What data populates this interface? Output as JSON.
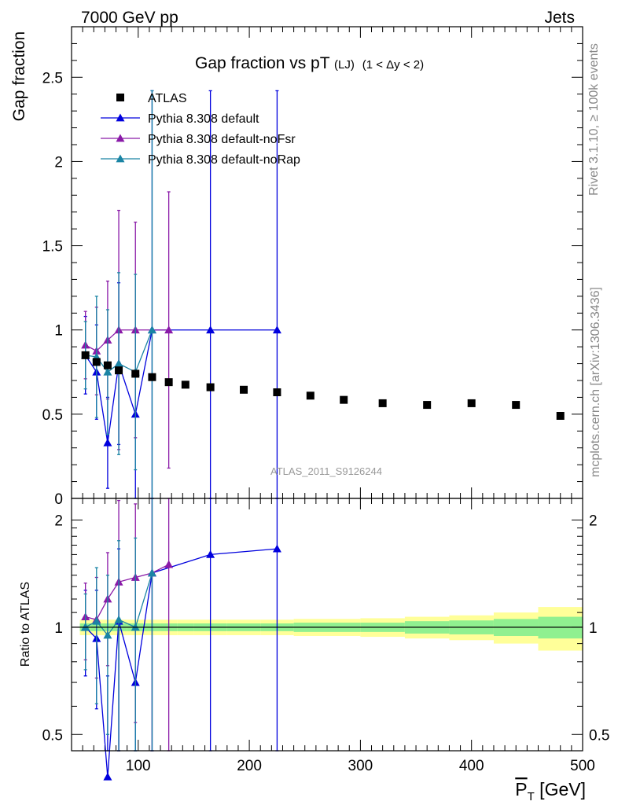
{
  "header": {
    "left": "7000 GeV pp",
    "right": "Jets"
  },
  "side_labels": {
    "rivet": "Rivet 3.1.10, ≥ 100k events",
    "mcplots": "mcplots.cern.ch [arXiv:1306.3436]"
  },
  "chart_data": [
    {
      "type": "scatter",
      "panel": "main",
      "title": "Gap fraction vs pT",
      "title_suffix": "(LJ)",
      "title_range": "(1 < Δy < 2)",
      "ylabel": "Gap fraction",
      "watermark": "ATLAS_2011_S9126244",
      "xlim": [
        40,
        500
      ],
      "ylim": [
        0,
        2.8
      ],
      "yticks": [
        0.5,
        1,
        1.5,
        2,
        2.5
      ],
      "ytick_labels": [
        "0.5",
        "1",
        "1.5",
        "2",
        "2.5"
      ],
      "y_bottom_label": "0",
      "legend_position": "top-left",
      "series": [
        {
          "name": "ATLAS",
          "color": "#000000",
          "marker": "square",
          "x": [
            52.5,
            62.5,
            72.5,
            82.5,
            97.5,
            112.5,
            127.5,
            142.5,
            165,
            195,
            225,
            255,
            285,
            320,
            360,
            400,
            440,
            480
          ],
          "y": [
            0.85,
            0.81,
            0.79,
            0.76,
            0.74,
            0.72,
            0.69,
            0.675,
            0.66,
            0.645,
            0.63,
            0.61,
            0.585,
            0.565,
            0.555,
            0.565,
            0.555,
            0.49
          ]
        },
        {
          "name": "Pythia 8.308 default",
          "color": "#0000dd",
          "marker": "triangle",
          "x": [
            52.5,
            62.5,
            72.5,
            82.5,
            97.5,
            112.5,
            165,
            225
          ],
          "y": [
            0.85,
            0.75,
            0.33,
            0.8,
            0.5,
            1.0,
            1.0,
            1.0
          ],
          "yerr": [
            0.23,
            0.28,
            0.27,
            0.48,
            0.5,
            1.42,
            1.42,
            1.42
          ]
        },
        {
          "name": "Pythia 8.308 default-noFsr",
          "color": "#8a1aa8",
          "marker": "triangle",
          "x": [
            52.5,
            62.5,
            72.5,
            82.5,
            97.5,
            127.5
          ],
          "y": [
            0.91,
            0.875,
            0.94,
            1.0,
            1.0,
            1.0
          ],
          "yerr": [
            0.2,
            0.26,
            0.35,
            0.71,
            0.64,
            0.82
          ]
        },
        {
          "name": "Pythia 8.308 default-noRap",
          "color": "#1a84a4",
          "marker": "triangle",
          "x": [
            52.5,
            62.5,
            72.5,
            82.5,
            97.5,
            112.5
          ],
          "y": [
            0.85,
            0.84,
            0.75,
            0.8,
            0.75,
            1.0
          ],
          "yerr": [
            0.2,
            0.36,
            0.37,
            0.54,
            0.58,
            1.42
          ]
        }
      ]
    },
    {
      "type": "line",
      "panel": "ratio",
      "ylabel": "Ratio to ATLAS",
      "xlabel": "P_T [GeV]",
      "xlabel_main": "P",
      "xlabel_sub": "T",
      "xlabel_unit": " [GeV]",
      "xlim": [
        40,
        500
      ],
      "ylim": [
        0.45,
        2.3
      ],
      "yticks": [
        0.5,
        1,
        2
      ],
      "ytick_labels": [
        "0.5",
        "1",
        "2"
      ],
      "xticks": [
        100,
        200,
        300,
        400,
        500
      ],
      "xtick_labels": [
        "100",
        "200",
        "300",
        "400",
        "500"
      ],
      "y_scale": "log",
      "uncertainty_bins": [
        {
          "lo": 47.5,
          "hi": 57.5,
          "inner": 0.025,
          "outer": 0.05
        },
        {
          "lo": 57.5,
          "hi": 67.5,
          "inner": 0.025,
          "outer": 0.05
        },
        {
          "lo": 67.5,
          "hi": 77.5,
          "inner": 0.025,
          "outer": 0.05
        },
        {
          "lo": 77.5,
          "hi": 90,
          "inner": 0.025,
          "outer": 0.05
        },
        {
          "lo": 90,
          "hi": 105,
          "inner": 0.025,
          "outer": 0.05
        },
        {
          "lo": 105,
          "hi": 120,
          "inner": 0.025,
          "outer": 0.05
        },
        {
          "lo": 120,
          "hi": 135,
          "inner": 0.025,
          "outer": 0.05
        },
        {
          "lo": 135,
          "hi": 150,
          "inner": 0.025,
          "outer": 0.05
        },
        {
          "lo": 150,
          "hi": 180,
          "inner": 0.025,
          "outer": 0.05
        },
        {
          "lo": 180,
          "hi": 210,
          "inner": 0.025,
          "outer": 0.05
        },
        {
          "lo": 210,
          "hi": 240,
          "inner": 0.025,
          "outer": 0.05
        },
        {
          "lo": 240,
          "hi": 270,
          "inner": 0.03,
          "outer": 0.055
        },
        {
          "lo": 270,
          "hi": 300,
          "inner": 0.03,
          "outer": 0.055
        },
        {
          "lo": 300,
          "hi": 340,
          "inner": 0.03,
          "outer": 0.06
        },
        {
          "lo": 340,
          "hi": 380,
          "inner": 0.04,
          "outer": 0.07
        },
        {
          "lo": 380,
          "hi": 420,
          "inner": 0.045,
          "outer": 0.08
        },
        {
          "lo": 420,
          "hi": 460,
          "inner": 0.055,
          "outer": 0.1
        },
        {
          "lo": 460,
          "hi": 500,
          "inner": 0.07,
          "outer": 0.14
        }
      ],
      "uncertainty_colors": {
        "inner": "#90f090",
        "outer": "#ffff99"
      },
      "series": [
        {
          "name": "Pythia 8.308 default",
          "color": "#0000dd",
          "x": [
            52.5,
            62.5,
            72.5,
            82.5,
            97.5,
            112.5,
            127.5,
            165,
            225
          ],
          "y": [
            1.0,
            0.93,
            0.38,
            1.04,
            0.7,
            1.42,
            null,
            1.6,
            1.66
          ],
          "yerr": [
            0.27,
            0.34,
            0.35,
            0.62,
            0.68,
            1.9,
            null,
            1.9,
            1.9
          ]
        },
        {
          "name": "Pythia 8.308 default-noFsr",
          "color": "#8a1aa8",
          "x": [
            52.5,
            62.5,
            72.5,
            82.5,
            97.5,
            112.5,
            127.5
          ],
          "y": [
            1.07,
            1.05,
            1.2,
            1.34,
            1.38,
            1.42,
            1.5
          ],
          "yerr": [
            0.26,
            0.33,
            0.42,
            0.93,
            0.84,
            1.1,
            1.1
          ]
        },
        {
          "name": "Pythia 8.308 default-noRap",
          "color": "#1a84a4",
          "x": [
            52.5,
            62.5,
            72.5,
            82.5,
            97.5,
            112.5
          ],
          "y": [
            1.0,
            1.04,
            0.95,
            1.05,
            1.0,
            1.42
          ],
          "yerr": [
            0.24,
            0.43,
            0.45,
            0.7,
            0.78,
            1.9
          ]
        }
      ]
    }
  ]
}
